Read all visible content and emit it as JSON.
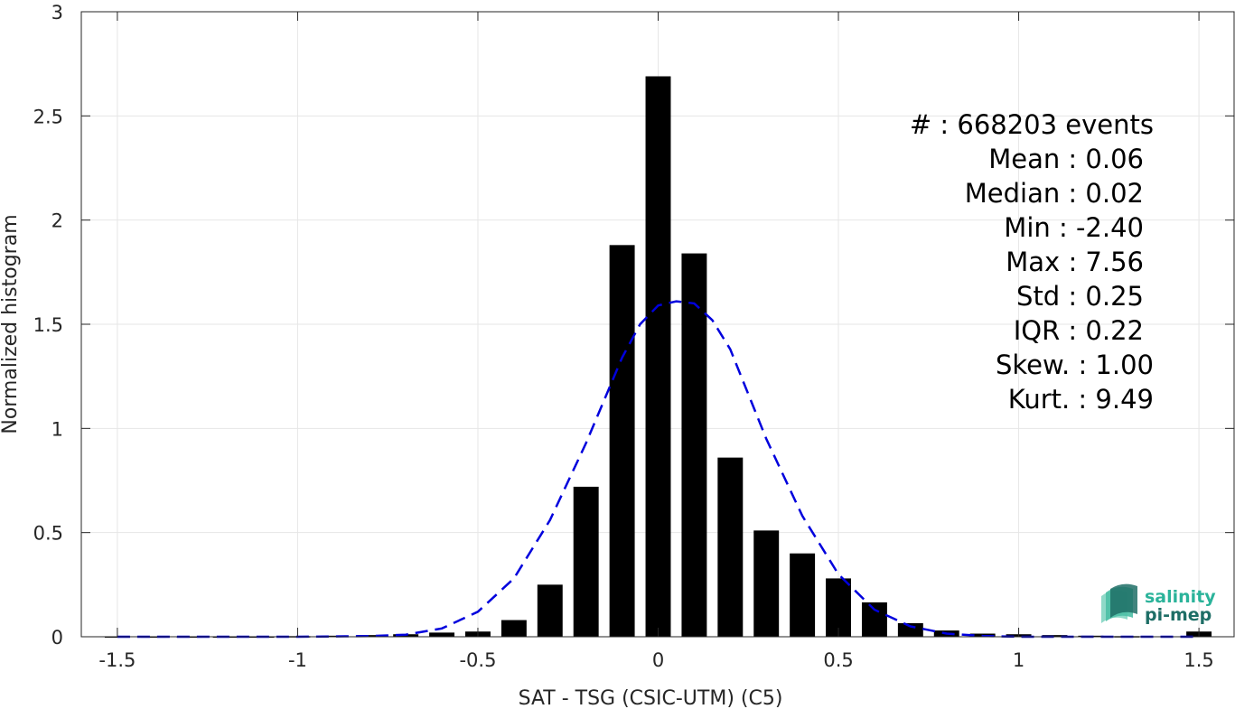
{
  "chart_data": {
    "type": "bar",
    "xlabel": "SAT - TSG (CSIC-UTM) (C5)",
    "ylabel": "Normalized histogram",
    "xlim": [
      -1.6,
      1.6
    ],
    "ylim": [
      0,
      3
    ],
    "xticks": [
      -1.5,
      -1,
      -0.5,
      0,
      0.5,
      1,
      1.5
    ],
    "xtick_labels": [
      "-1.5",
      "-1",
      "-0.5",
      "0",
      "0.5",
      "1",
      "1.5"
    ],
    "yticks": [
      0,
      0.5,
      1,
      1.5,
      2,
      2.5,
      3
    ],
    "ytick_labels": [
      "0",
      "0.5",
      "1",
      "1.5",
      "2",
      "2.5",
      "3"
    ],
    "grid": true,
    "bar_color": "#000000",
    "bar_width": 0.07,
    "bins": [
      {
        "x": -1.5,
        "y": 0.002
      },
      {
        "x": -1.4,
        "y": 0.002
      },
      {
        "x": -1.3,
        "y": 0.002
      },
      {
        "x": -1.2,
        "y": 0.002
      },
      {
        "x": -1.1,
        "y": 0.002
      },
      {
        "x": -1.0,
        "y": 0.003
      },
      {
        "x": -0.9,
        "y": 0.005
      },
      {
        "x": -0.8,
        "y": 0.008
      },
      {
        "x": -0.7,
        "y": 0.012
      },
      {
        "x": -0.6,
        "y": 0.02
      },
      {
        "x": -0.5,
        "y": 0.025
      },
      {
        "x": -0.4,
        "y": 0.08
      },
      {
        "x": -0.3,
        "y": 0.25
      },
      {
        "x": -0.2,
        "y": 0.72
      },
      {
        "x": -0.1,
        "y": 1.88
      },
      {
        "x": 0.0,
        "y": 2.69
      },
      {
        "x": 0.1,
        "y": 1.84
      },
      {
        "x": 0.2,
        "y": 0.86
      },
      {
        "x": 0.3,
        "y": 0.51
      },
      {
        "x": 0.4,
        "y": 0.4
      },
      {
        "x": 0.5,
        "y": 0.28
      },
      {
        "x": 0.6,
        "y": 0.165
      },
      {
        "x": 0.7,
        "y": 0.065
      },
      {
        "x": 0.8,
        "y": 0.03
      },
      {
        "x": 0.9,
        "y": 0.015
      },
      {
        "x": 1.0,
        "y": 0.012
      },
      {
        "x": 1.1,
        "y": 0.008
      },
      {
        "x": 1.2,
        "y": 0.005
      },
      {
        "x": 1.3,
        "y": 0.003
      },
      {
        "x": 1.5,
        "y": 0.025
      }
    ],
    "fit_curve": {
      "style": "dashed",
      "color": "#0000dd",
      "points": [
        [
          -1.5,
          0.0
        ],
        [
          -1.2,
          0.0
        ],
        [
          -1.0,
          0.0
        ],
        [
          -0.8,
          0.003
        ],
        [
          -0.7,
          0.01
        ],
        [
          -0.6,
          0.04
        ],
        [
          -0.5,
          0.12
        ],
        [
          -0.4,
          0.28
        ],
        [
          -0.3,
          0.56
        ],
        [
          -0.2,
          0.93
        ],
        [
          -0.1,
          1.34
        ],
        [
          -0.05,
          1.5
        ],
        [
          0.0,
          1.59
        ],
        [
          0.05,
          1.61
        ],
        [
          0.1,
          1.6
        ],
        [
          0.15,
          1.52
        ],
        [
          0.2,
          1.38
        ],
        [
          0.3,
          0.95
        ],
        [
          0.4,
          0.58
        ],
        [
          0.5,
          0.3
        ],
        [
          0.6,
          0.13
        ],
        [
          0.7,
          0.05
        ],
        [
          0.8,
          0.015
        ],
        [
          0.9,
          0.004
        ],
        [
          1.0,
          0.0
        ],
        [
          1.2,
          0.0
        ],
        [
          1.5,
          0.0
        ]
      ]
    }
  },
  "stats": {
    "lines": [
      "#  : 668203 events",
      "Mean : 0.06",
      "Median : 0.02",
      "Min : -2.40",
      "Max : 7.56",
      "Std : 0.25",
      "IQR : 0.22",
      "Skew. : 1.00",
      "Kurt. : 9.49"
    ]
  },
  "logo": {
    "line1": "salinity",
    "line2": "pi-mep",
    "color1": "#2bb39a",
    "color2": "#1e6e66"
  }
}
